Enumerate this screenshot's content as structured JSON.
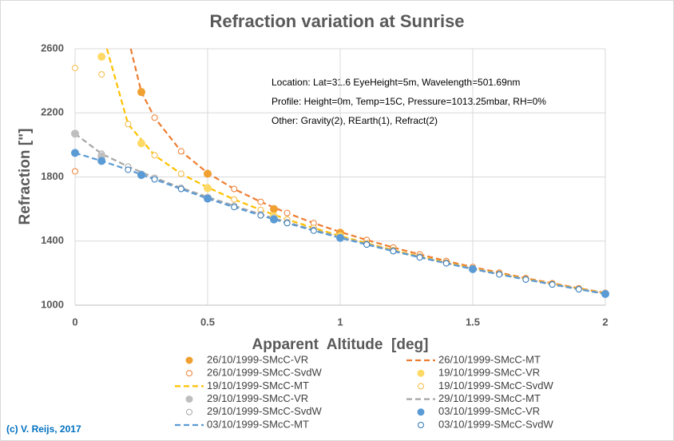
{
  "chart_data": {
    "type": "scatter",
    "title": "Refraction variation at Sunrise",
    "x_label": "Apparent  Altitude  [deg]",
    "y_label": "Refraction [\"]",
    "xlim": [
      0,
      2
    ],
    "xticks": [
      0,
      0.5,
      1,
      1.5,
      2
    ],
    "ylim": [
      1000,
      2600
    ],
    "yticks": [
      1000,
      1400,
      1800,
      2200,
      2600
    ],
    "grid": true,
    "annotations": [
      "Location: Lat=31.6 EyeHeight=5m, Wavelength=501.69nm",
      "Profile: Height=0m, Temp=15C, Pressure=1013.25mbar, RH=0%",
      "Other: Gravity(2), REarth(1), Refract(2)"
    ],
    "credit": "(c) V. Reijs, 2017",
    "series": [
      {
        "name": "26/10/1999-SMcC-VR",
        "style": "dot",
        "color": "#f0a030",
        "x": [
          0.25,
          0.5,
          0.75,
          1
        ],
        "values": [
          2330,
          1820,
          1600,
          1452
        ]
      },
      {
        "name": "26/10/1999-SMcC-MT",
        "style": "dash",
        "color": "#ed7d31",
        "x": [
          0.21,
          0.25,
          0.3,
          0.4,
          0.5,
          0.6,
          0.7,
          0.8,
          0.9,
          1,
          1.1,
          1.2,
          1.3,
          1.4,
          1.5,
          1.6,
          1.7,
          1.8,
          1.9,
          2
        ],
        "values": [
          2600,
          2330,
          2170,
          1960,
          1825,
          1725,
          1645,
          1575,
          1512,
          1457,
          1407,
          1360,
          1317,
          1276,
          1238,
          1203,
          1169,
          1137,
          1106,
          1077
        ]
      },
      {
        "name": "26/10/1999-SMcC-SvdW",
        "style": "circle",
        "color": "#ed7d31",
        "x": [
          0,
          0.3,
          0.4,
          0.5,
          0.6,
          0.7,
          0.8,
          0.9,
          1,
          1.1,
          1.2,
          1.3,
          1.4,
          1.5,
          1.6,
          1.7,
          1.8,
          1.9,
          2
        ],
        "values": [
          1835,
          2170,
          1960,
          1825,
          1725,
          1645,
          1575,
          1512,
          1457,
          1407,
          1360,
          1317,
          1276,
          1238,
          1203,
          1169,
          1137,
          1106,
          1077
        ]
      },
      {
        "name": "19/10/1999-SMcC-VR",
        "style": "dot",
        "color": "#ffd966",
        "x": [
          0.1,
          0.25,
          0.5,
          0.75,
          1
        ],
        "values": [
          2550,
          2010,
          1730,
          1555,
          1430
        ]
      },
      {
        "name": "19/10/1999-SMcC-MT",
        "style": "dash",
        "color": "#ffc000",
        "x": [
          0.12,
          0.2,
          0.3,
          0.4,
          0.5,
          0.6,
          0.7,
          0.8,
          0.9,
          1,
          1.1,
          1.2,
          1.3,
          1.4,
          1.5,
          1.6,
          1.7,
          1.8,
          1.9,
          2
        ],
        "values": [
          2600,
          2130,
          1935,
          1820,
          1735,
          1660,
          1595,
          1535,
          1482,
          1432,
          1387,
          1344,
          1304,
          1266,
          1230,
          1196,
          1164,
          1133,
          1103,
          1075
        ]
      },
      {
        "name": "19/10/1999-SMcC-SvdW",
        "style": "circle",
        "color": "#f5b942",
        "x": [
          0,
          0.1,
          0.2,
          0.3,
          0.4,
          0.5,
          0.6,
          0.7,
          0.8,
          0.9,
          1,
          1.1,
          1.2,
          1.3,
          1.4,
          1.5,
          1.6,
          1.7,
          1.8,
          1.9,
          2
        ],
        "values": [
          2480,
          2440,
          2130,
          1935,
          1820,
          1735,
          1660,
          1595,
          1535,
          1482,
          1432,
          1387,
          1344,
          1304,
          1266,
          1230,
          1196,
          1164,
          1133,
          1103,
          1075
        ]
      },
      {
        "name": "29/10/1999-SMcC-VR",
        "style": "dot",
        "color": "#bfbfbf",
        "x": [
          0,
          0.1,
          0.25,
          0.5,
          0.75
        ],
        "values": [
          2070,
          1930,
          1815,
          1670,
          1540
        ]
      },
      {
        "name": "29/10/1999-SMcC-MT",
        "style": "dash",
        "color": "#a5a5a5",
        "x": [
          0,
          0.1,
          0.2,
          0.3,
          0.4,
          0.5,
          0.6,
          0.7,
          0.8,
          0.9,
          1,
          1.1,
          1.2,
          1.3,
          1.4,
          1.5,
          1.6,
          1.7,
          1.8,
          1.9,
          2
        ],
        "values": [
          2070,
          1945,
          1865,
          1795,
          1732,
          1675,
          1620,
          1567,
          1518,
          1470,
          1425,
          1382,
          1340,
          1301,
          1263,
          1228,
          1194,
          1162,
          1131,
          1101,
          1072
        ]
      },
      {
        "name": "29/10/1999-SMcC-SvdW",
        "style": "circle",
        "color": "#a5a5a5",
        "x": [
          0,
          0.1,
          0.2,
          0.3,
          0.4,
          0.5,
          0.6,
          0.7,
          0.8,
          0.9,
          1,
          1.1,
          1.2,
          1.3,
          1.4,
          1.5,
          1.6,
          1.7,
          1.8,
          1.9,
          2
        ],
        "values": [
          2070,
          1945,
          1865,
          1795,
          1732,
          1675,
          1620,
          1567,
          1518,
          1470,
          1425,
          1382,
          1340,
          1301,
          1263,
          1228,
          1194,
          1162,
          1131,
          1101,
          1072
        ]
      },
      {
        "name": "03/10/1999-SMcC-VR",
        "style": "dot",
        "color": "#5b9bd5",
        "x": [
          0,
          0.1,
          0.25,
          0.5,
          0.75,
          1,
          1.5,
          2
        ],
        "values": [
          1950,
          1900,
          1812,
          1665,
          1535,
          1420,
          1225,
          1070
        ]
      },
      {
        "name": "03/10/1999-SMcC-MT",
        "style": "dash",
        "color": "#5b9bd5",
        "x": [
          0,
          0.1,
          0.2,
          0.3,
          0.4,
          0.5,
          0.6,
          0.7,
          0.8,
          0.9,
          1,
          1.1,
          1.2,
          1.3,
          1.4,
          1.5,
          1.6,
          1.7,
          1.8,
          1.9,
          2
        ],
        "values": [
          1950,
          1900,
          1845,
          1785,
          1725,
          1665,
          1612,
          1560,
          1512,
          1465,
          1420,
          1378,
          1337,
          1298,
          1261,
          1225,
          1192,
          1160,
          1129,
          1099,
          1070
        ]
      },
      {
        "name": "03/10/1999-SMcC-SvdW",
        "style": "circle",
        "color": "#2e75b6",
        "x": [
          0,
          0.1,
          0.2,
          0.3,
          0.4,
          0.5,
          0.6,
          0.7,
          0.8,
          0.9,
          1,
          1.1,
          1.2,
          1.3,
          1.4,
          1.5,
          1.6,
          1.7,
          1.8,
          1.9,
          2
        ],
        "values": [
          1950,
          1900,
          1845,
          1785,
          1725,
          1665,
          1612,
          1560,
          1512,
          1465,
          1420,
          1378,
          1337,
          1298,
          1261,
          1225,
          1192,
          1160,
          1129,
          1099,
          1070
        ]
      }
    ]
  }
}
